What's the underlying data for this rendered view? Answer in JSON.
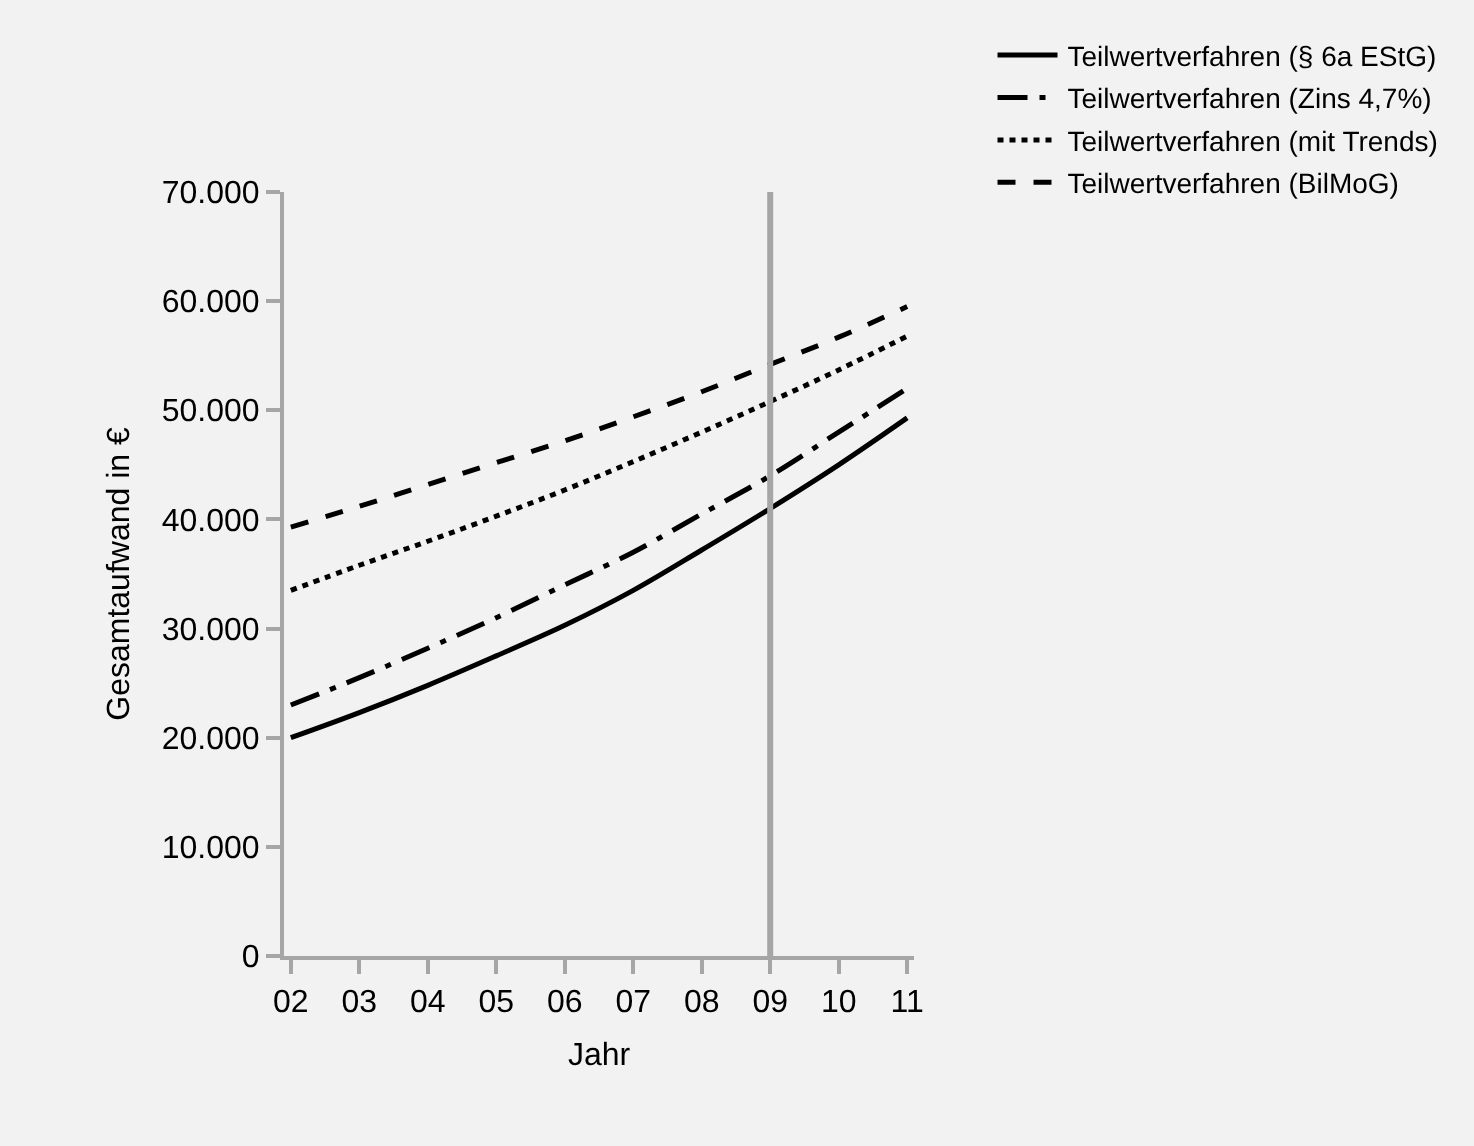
{
  "chart_data": {
    "type": "line",
    "xlabel": "Jahr",
    "ylabel": "Gesamtaufwand in €",
    "categories": [
      "02",
      "03",
      "04",
      "05",
      "06",
      "07",
      "08",
      "09",
      "10",
      "11"
    ],
    "series": [
      {
        "name": "Teilwertverfahren (§ 6a EStG)",
        "color": "#000000",
        "line_style": "solid",
        "values": [
          20000,
          22300,
          24800,
          27500,
          30300,
          33500,
          37200,
          41000,
          45000,
          49300
        ]
      },
      {
        "name": "Teilwertverfahren (Zins 4,7%)",
        "color": "#000000",
        "line_style": "dashdot",
        "values": [
          23000,
          25500,
          28200,
          31000,
          34000,
          37000,
          40500,
          44000,
          48000,
          52000
        ]
      },
      {
        "name": "Teilwertverfahren (mit Trends)",
        "color": "#000000",
        "line_style": "dotted",
        "values": [
          33500,
          35800,
          38000,
          40300,
          42700,
          45300,
          48000,
          50800,
          53700,
          56800
        ]
      },
      {
        "name": "Teilwertverfahren (BilMoG)",
        "color": "#000000",
        "line_style": "dashed",
        "values": [
          39300,
          41200,
          43200,
          45200,
          47200,
          49400,
          51700,
          54200,
          56700,
          59500
        ]
      }
    ],
    "ylim": [
      0,
      70000
    ],
    "yticks": [
      {
        "value": 0,
        "label": "0"
      },
      {
        "value": 10000,
        "label": "10.000"
      },
      {
        "value": 20000,
        "label": "20.000"
      },
      {
        "value": 30000,
        "label": "30.000"
      },
      {
        "value": 40000,
        "label": "40.000"
      },
      {
        "value": 50000,
        "label": "50.000"
      },
      {
        "value": 60000,
        "label": "60.000"
      },
      {
        "value": 70000,
        "label": "70.000"
      }
    ],
    "ref_lines": [
      {
        "axis": "x",
        "value": "09",
        "color": "#a6a6a6"
      }
    ],
    "grid": false,
    "legend": "top right",
    "marker": "none"
  }
}
